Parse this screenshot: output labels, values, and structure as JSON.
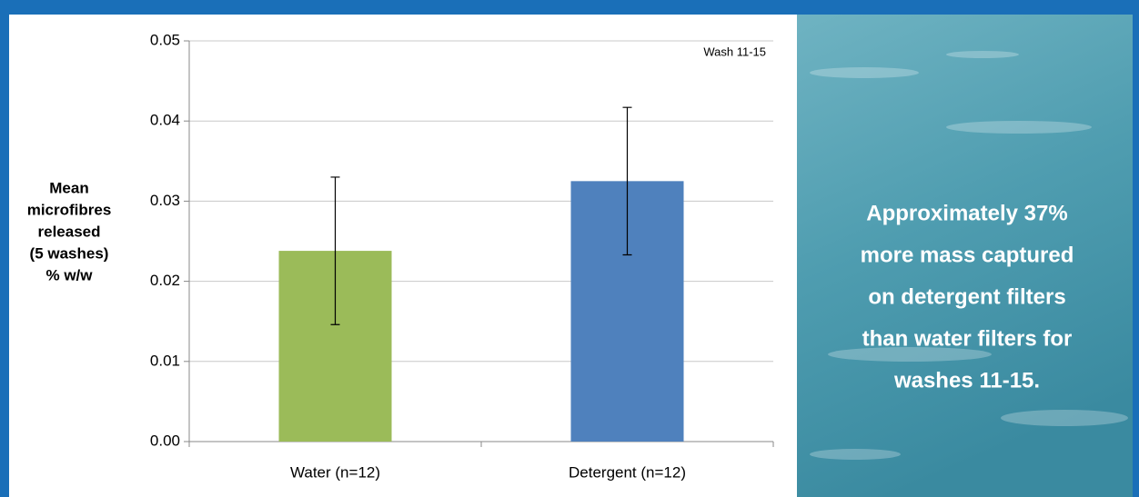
{
  "chart_data": {
    "type": "bar",
    "y_label_lines": [
      "Mean",
      "microfibres",
      "released",
      "(5 washes)",
      "% w/w"
    ],
    "annotation": "Wash 11-15",
    "categories": [
      "Water (n=12)",
      "Detergent (n=12)"
    ],
    "values": [
      0.0238,
      0.0325
    ],
    "errors": [
      0.0092,
      0.0092
    ],
    "colors": [
      "#9bbb59",
      "#4f81bd"
    ],
    "ylim": [
      0,
      0.05
    ],
    "yticks": [
      {
        "value": 0,
        "label": "0.00"
      },
      0.01,
      0.02,
      0.03,
      0.04,
      0.05
    ],
    "grid": true
  },
  "side_panel": {
    "text_lines": [
      "Approximately 37%",
      "more mass captured",
      "on detergent filters",
      "than water filters for",
      "washes 11-15."
    ]
  }
}
